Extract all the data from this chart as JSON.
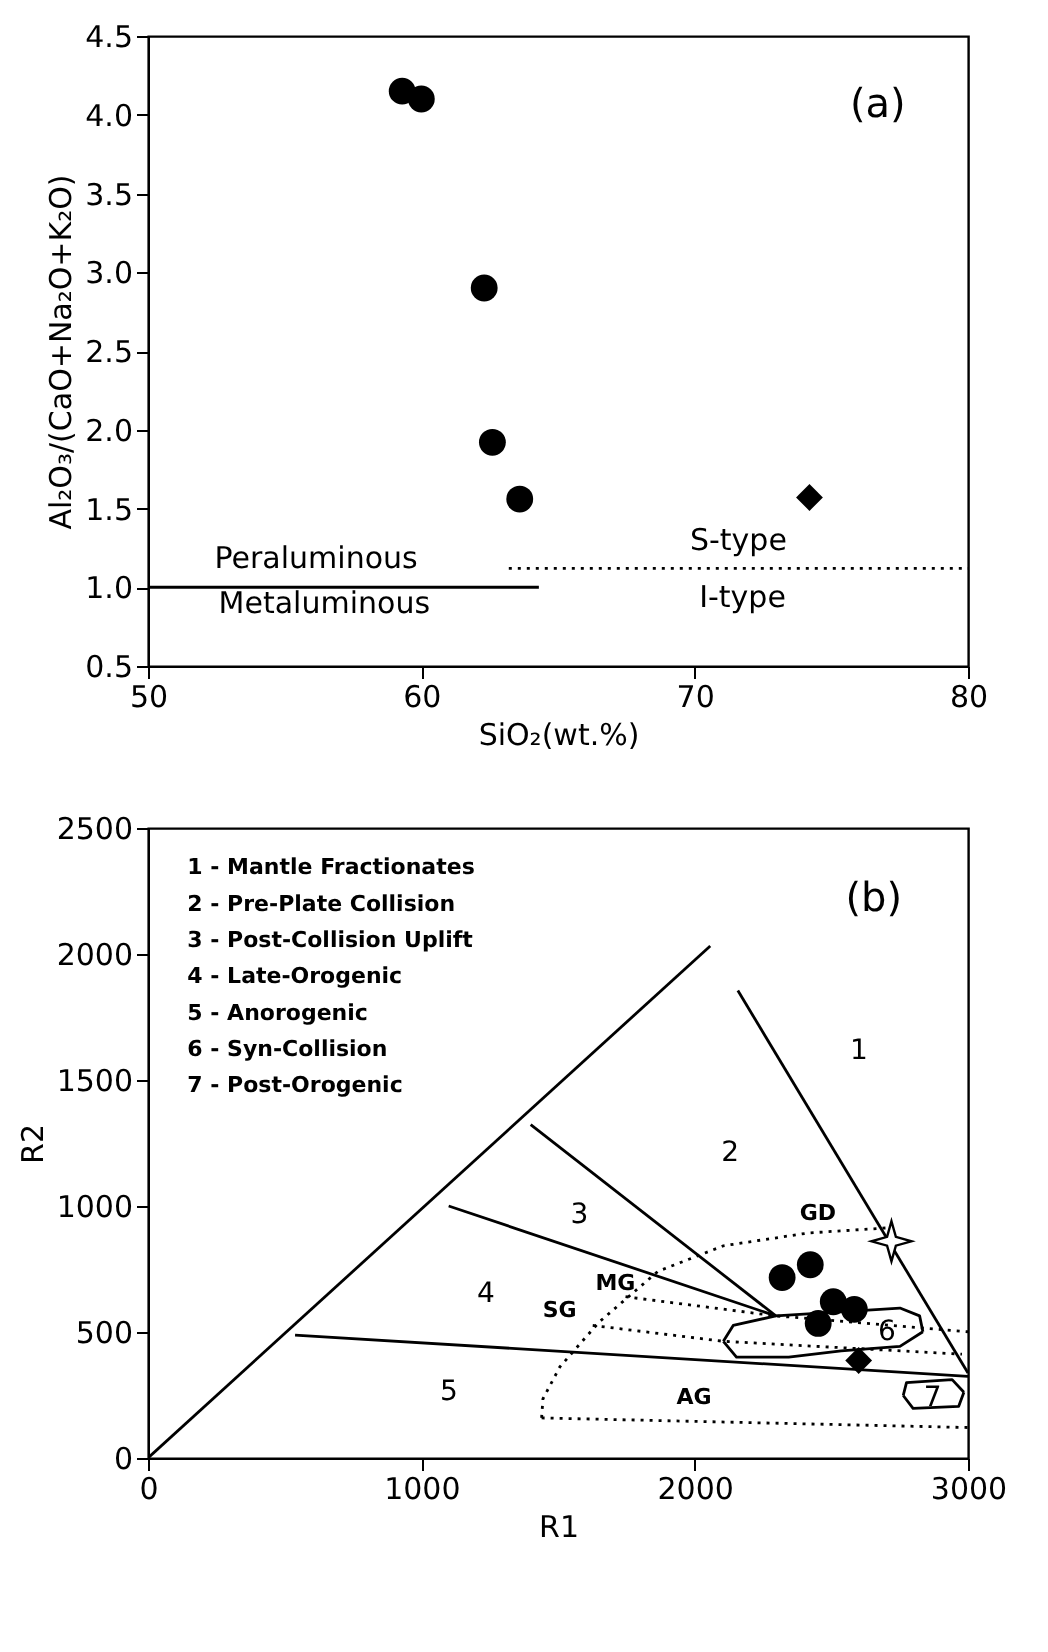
{
  "chart_data": [
    {
      "type": "scatter",
      "xlabel": "SiO₂(wt.%)",
      "ylabel": "Al₂O₃/(CaO+Na₂O+K₂O)",
      "xlim": [
        50,
        80
      ],
      "xticks": [
        50,
        60,
        70,
        80
      ],
      "ylim": [
        0.5,
        4.5
      ],
      "yticks": [
        0.5,
        {
          "value": 1,
          "label": "1.0"
        },
        1.5,
        {
          "value": 2,
          "label": "2.0"
        },
        2.5,
        {
          "value": 3,
          "label": "3.0"
        },
        3.5,
        {
          "value": 4,
          "label": "4.0"
        },
        4.5
      ],
      "grid": false,
      "series": [
        {
          "type": "scatter",
          "marker": "circle",
          "color": "#000000",
          "x": [
            59.3,
            60.0,
            62.3,
            62.6,
            63.6
          ],
          "values": [
            4.15,
            4.1,
            2.9,
            1.92,
            1.56
          ]
        },
        {
          "type": "scatter",
          "marker": "diamond",
          "color": "#000000",
          "x": [
            74.2
          ],
          "values": [
            1.57
          ]
        },
        {
          "type": "line",
          "line_style": "solid",
          "color": "#000000",
          "x": [
            50,
            64.3
          ],
          "values": [
            1.0,
            1.0
          ]
        },
        {
          "type": "line",
          "line_style": "dotted",
          "color": "#000000",
          "x": [
            63.2,
            80
          ],
          "values": [
            1.12,
            1.12
          ]
        }
      ],
      "annotations": [
        "Peraluminous",
        "Metaluminous",
        "S-type",
        "I-type",
        "(a)"
      ]
    },
    {
      "type": "scatter",
      "xlabel": "R1",
      "ylabel": "R2",
      "xlim": [
        0,
        3000
      ],
      "xticks": [
        0,
        1000,
        2000,
        3000
      ],
      "ylim": [
        0,
        2500
      ],
      "yticks": [
        0,
        500,
        1000,
        1500,
        2000,
        2500
      ],
      "grid": false,
      "series": [
        {
          "type": "line",
          "line_style": "solid",
          "color": "#000000",
          "x": [
            0,
            2057
          ],
          "values": [
            0,
            2032
          ]
        },
        {
          "type": "line",
          "line_style": "solid",
          "color": "#000000",
          "x": [
            2158,
            3000
          ],
          "values": [
            1855,
            337
          ]
        },
        {
          "type": "line",
          "line_style": "solid",
          "color": "#000000",
          "x": [
            1400,
            2297
          ],
          "values": [
            1323,
            564
          ]
        },
        {
          "type": "line",
          "line_style": "solid",
          "color": "#000000",
          "x": [
            1100,
            2297
          ],
          "values": [
            1000,
            564
          ]
        },
        {
          "type": "line",
          "line_style": "solid",
          "color": "#000000",
          "x": [
            538,
            3000
          ],
          "values": [
            488,
            324
          ]
        },
        {
          "type": "line",
          "line_style": "solid",
          "color": "#000000",
          "x": [
            2105,
            2141,
            2297,
            2751,
            2823,
            2835
          ],
          "values": [
            463,
            526,
            564,
            595,
            564,
            501
          ]
        },
        {
          "type": "line",
          "line_style": "solid",
          "color": "#000000",
          "x": [
            2105,
            2153,
            2344,
            2536,
            2751,
            2835
          ],
          "values": [
            463,
            400,
            400,
            425,
            443,
            501
          ]
        },
        {
          "type": "line",
          "line_style": "solid",
          "color": "#000000",
          "x": [
            2763,
            2775,
            2942,
            2985
          ],
          "values": [
            248,
            299,
            311,
            261
          ]
        },
        {
          "type": "line",
          "line_style": "solid",
          "color": "#000000",
          "x": [
            2763,
            2799,
            2966,
            2985
          ],
          "values": [
            248,
            197,
            205,
            261
          ]
        },
        {
          "type": "line",
          "line_style": "dotted",
          "color": "#000000",
          "x": [
            1440,
            3000
          ],
          "values": [
            159,
            121
          ]
        },
        {
          "type": "line",
          "line_style": "dotted",
          "color": "#000000",
          "x": [
            1440,
            1445,
            1507,
            1650,
            1866,
            2105,
            2416,
            2703
          ],
          "values": [
            159,
            235,
            362,
            539,
            741,
            842,
            893,
            913
          ]
        },
        {
          "type": "line",
          "line_style": "dotted",
          "color": "#000000",
          "x": [
            1747,
            2297,
            3000
          ],
          "values": [
            640,
            564,
            501
          ]
        },
        {
          "type": "line",
          "line_style": "dotted",
          "color": "#000000",
          "x": [
            1627,
            2105,
            2978
          ],
          "values": [
            526,
            463,
            412
          ]
        },
        {
          "type": "scatter",
          "marker": "circle",
          "color": "#000000",
          "x": [
            2320,
            2423,
            2507,
            2584,
            2452
          ],
          "values": [
            716,
            767,
            620,
            590,
            534
          ]
        },
        {
          "type": "scatter",
          "marker": "diamond",
          "color": "#000000",
          "x": [
            2600
          ],
          "values": [
            387
          ]
        },
        {
          "type": "scatter",
          "marker": "star",
          "color": "#000000",
          "x": [
            2720
          ],
          "values": [
            860
          ]
        }
      ],
      "annotations": [
        "1 - Mantle Fractionates",
        "2 - Pre-Plate Collision",
        "3 - Post-Collision Uplift",
        "4 - Late-Orogenic",
        "5 - Anorogenic",
        "6 - Syn-Collision",
        "7 - Post-Orogenic",
        "1",
        "2",
        "3",
        "4",
        "5",
        "6",
        "7",
        "GD",
        "MG",
        "SG",
        "AG",
        "(b)"
      ]
    }
  ]
}
